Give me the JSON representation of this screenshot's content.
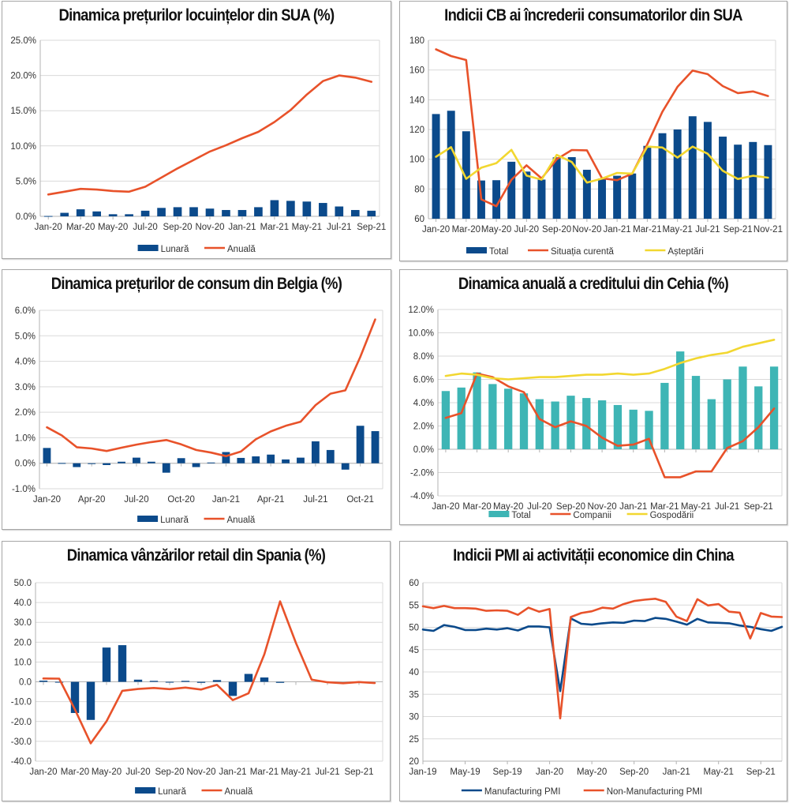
{
  "chart_data": [
    {
      "id": "us-house-prices",
      "type": "bar+line",
      "title": "Dinamica prețurilor locuințelor din SUA (%)",
      "xlabel": "",
      "ylabel": "",
      "categories": [
        "Jan-20",
        "Feb-20",
        "Mar-20",
        "Apr-20",
        "May-20",
        "Jun-20",
        "Jul-20",
        "Aug-20",
        "Sep-20",
        "Oct-20",
        "Nov-20",
        "Dec-20",
        "Jan-21",
        "Feb-21",
        "Mar-21",
        "Apr-21",
        "May-21",
        "Jun-21",
        "Jul-21",
        "Aug-21",
        "Sep-21"
      ],
      "tick_labels": [
        "Jan-20",
        "Mar-20",
        "May-20",
        "Jul-20",
        "Sep-20",
        "Nov-20",
        "Jan-21",
        "Mar-21",
        "May-21",
        "Jul-21",
        "Sep-21"
      ],
      "ylim": [
        0,
        25
      ],
      "ystep": 5,
      "yformat": "pct1",
      "grid": true,
      "legend": "bottom",
      "series": [
        {
          "name": "Lunară",
          "kind": "bar",
          "color": "#0b4a8b",
          "values": [
            0.05,
            0.5,
            1.0,
            0.7,
            0.3,
            0.3,
            0.8,
            1.2,
            1.3,
            1.3,
            1.1,
            0.9,
            0.9,
            1.3,
            2.3,
            2.2,
            2.1,
            1.9,
            1.4,
            0.9,
            0.8
          ]
        },
        {
          "name": "Anuală",
          "kind": "line",
          "color": "#e8522a",
          "values": [
            3.1,
            3.5,
            3.9,
            3.8,
            3.6,
            3.5,
            4.2,
            5.5,
            6.8,
            8.0,
            9.2,
            10.1,
            11.1,
            12.0,
            13.4,
            15.1,
            17.3,
            19.2,
            20.0,
            19.7,
            19.1
          ]
        }
      ]
    },
    {
      "id": "us-consumer-confidence",
      "type": "bar+line",
      "title": "Indicii CB ai încrederii consumatorilor din SUA",
      "xlabel": "",
      "ylabel": "",
      "categories": [
        "Jan-20",
        "Feb-20",
        "Mar-20",
        "Apr-20",
        "May-20",
        "Jun-20",
        "Jul-20",
        "Aug-20",
        "Sep-20",
        "Oct-20",
        "Nov-20",
        "Dec-20",
        "Jan-21",
        "Feb-21",
        "Mar-21",
        "Apr-21",
        "May-21",
        "Jun-21",
        "Jul-21",
        "Aug-21",
        "Sep-21",
        "Oct-21",
        "Nov-21"
      ],
      "tick_labels": [
        "Jan-20",
        "Mar-20",
        "May-20",
        "Jul-20",
        "Sep-20",
        "Nov-20",
        "Jan-21",
        "Mar-21",
        "May-21",
        "Jul-21",
        "Sep-21",
        "Nov-21"
      ],
      "ylim": [
        60,
        180
      ],
      "ystep": 20,
      "yformat": "int",
      "grid": true,
      "legend": "bottom",
      "series": [
        {
          "name": "Total",
          "kind": "bar",
          "color": "#0b4a8b",
          "values": [
            130.4,
            132.6,
            118.8,
            85.7,
            85.9,
            98.3,
            91.7,
            86.3,
            101.3,
            101.4,
            92.9,
            87.1,
            88.9,
            90.4,
            109.0,
            117.5,
            120.0,
            128.9,
            125.1,
            115.2,
            109.8,
            111.6,
            109.5
          ]
        },
        {
          "name": "Situația curentă",
          "kind": "line",
          "color": "#e8522a",
          "values": [
            173.9,
            169.4,
            166.7,
            73.0,
            68.4,
            86.2,
            95.9,
            87.1,
            100.0,
            106.2,
            106.0,
            87.2,
            85.9,
            90.3,
            110.0,
            131.9,
            148.7,
            159.6,
            157.2,
            149.2,
            144.5,
            145.6,
            142.5
          ]
        },
        {
          "name": "Așteptări",
          "kind": "line",
          "color": "#f2d730",
          "values": [
            101.7,
            108.1,
            86.8,
            94.3,
            97.4,
            106.3,
            89.0,
            86.3,
            102.9,
            98.1,
            84.3,
            87.0,
            90.8,
            90.3,
            108.5,
            107.9,
            101.1,
            108.5,
            103.7,
            92.3,
            86.7,
            88.9,
            87.6
          ]
        }
      ]
    },
    {
      "id": "belgium-cpi",
      "type": "bar+line",
      "title": "Dinamica prețurilor de consum din Belgia (%)",
      "xlabel": "",
      "ylabel": "",
      "categories": [
        "Jan-20",
        "Feb-20",
        "Mar-20",
        "Apr-20",
        "May-20",
        "Jun-20",
        "Jul-20",
        "Aug-20",
        "Sep-20",
        "Oct-20",
        "Nov-20",
        "Dec-20",
        "Jan-21",
        "Feb-21",
        "Mar-21",
        "Apr-21",
        "May-21",
        "Jun-21",
        "Jul-21",
        "Aug-21",
        "Sep-21",
        "Oct-21",
        "Nov-21"
      ],
      "tick_labels": [
        "Jan-20",
        "Apr-20",
        "Jul-20",
        "Oct-20",
        "Jan-21",
        "Apr-21",
        "Jul-21",
        "Oct-21"
      ],
      "tick_every": 3,
      "ylim": [
        -1,
        6
      ],
      "ystep": 1,
      "yformat": "pct1",
      "grid": true,
      "legend": "bottom",
      "series": [
        {
          "name": "Lunară",
          "kind": "bar",
          "color": "#0b4a8b",
          "values": [
            0.6,
            0.01,
            -0.15,
            0.0,
            -0.07,
            0.06,
            0.22,
            0.06,
            -0.37,
            0.2,
            -0.15,
            0.03,
            0.44,
            0.21,
            0.27,
            0.34,
            0.15,
            0.22,
            0.86,
            0.52,
            -0.25,
            1.47,
            1.26
          ]
        },
        {
          "name": "Anuală",
          "kind": "line",
          "color": "#e8522a",
          "values": [
            1.41,
            1.09,
            0.63,
            0.58,
            0.48,
            0.61,
            0.73,
            0.83,
            0.91,
            0.74,
            0.52,
            0.42,
            0.28,
            0.46,
            0.94,
            1.25,
            1.47,
            1.63,
            2.28,
            2.73,
            2.86,
            4.17,
            5.64
          ]
        }
      ]
    },
    {
      "id": "czech-credit",
      "type": "bar+line",
      "title": "Dinamica anuală a creditului din Cehia (%)",
      "xlabel": "",
      "ylabel": "",
      "categories": [
        "Jan-20",
        "Feb-20",
        "Mar-20",
        "Apr-20",
        "May-20",
        "Jun-20",
        "Jul-20",
        "Aug-20",
        "Sep-20",
        "Oct-20",
        "Nov-20",
        "Dec-20",
        "Jan-21",
        "Feb-21",
        "Mar-21",
        "Apr-21",
        "May-21",
        "Jun-21",
        "Jul-21",
        "Aug-21",
        "Sep-21",
        "Oct-21"
      ],
      "tick_labels": [
        "Jan-20",
        "Mar-20",
        "May-20",
        "Jul-20",
        "Sep-20",
        "Nov-20",
        "Jan-21",
        "Mar-21",
        "May-21",
        "Jul-21",
        "Sep-21"
      ],
      "ylim": [
        -4,
        12
      ],
      "ystep": 2,
      "yformat": "pct1",
      "grid": true,
      "legend": "bottom",
      "series": [
        {
          "name": "Total",
          "kind": "bar",
          "color": "#3eb5b5",
          "values": [
            5.0,
            5.3,
            6.6,
            5.6,
            5.2,
            4.8,
            4.3,
            4.1,
            4.6,
            4.4,
            4.2,
            3.8,
            3.4,
            3.3,
            5.7,
            8.4,
            6.3,
            4.3,
            6.0,
            7.1,
            5.4,
            7.1
          ]
        },
        {
          "name": "Companii",
          "kind": "line",
          "color": "#e8522a",
          "values": [
            2.7,
            3.1,
            6.5,
            6.2,
            5.4,
            4.9,
            2.6,
            1.9,
            2.4,
            2.0,
            1.0,
            0.3,
            0.4,
            0.9,
            -2.4,
            -2.4,
            -1.9,
            -1.9,
            0.1,
            0.7,
            1.9,
            3.5
          ]
        },
        {
          "name": "Gospodării",
          "kind": "line",
          "color": "#f2d730",
          "values": [
            6.3,
            6.5,
            6.4,
            6.1,
            6.0,
            6.1,
            6.2,
            6.2,
            6.3,
            6.4,
            6.4,
            6.5,
            6.4,
            6.5,
            6.9,
            7.4,
            7.8,
            8.1,
            8.3,
            8.8,
            9.1,
            9.4
          ]
        }
      ]
    },
    {
      "id": "spain-retail",
      "type": "bar+line",
      "title": "Dinamica vânzărilor retail din Spania (%)",
      "xlabel": "",
      "ylabel": "",
      "categories": [
        "Jan-20",
        "Feb-20",
        "Mar-20",
        "Apr-20",
        "May-20",
        "Jun-20",
        "Jul-20",
        "Aug-20",
        "Sep-20",
        "Oct-20",
        "Nov-20",
        "Dec-20",
        "Jan-21",
        "Feb-21",
        "Mar-21",
        "Apr-21",
        "May-21",
        "Jun-21",
        "Jul-21",
        "Aug-21",
        "Sep-21",
        "Oct-21"
      ],
      "tick_labels": [
        "Jan-20",
        "Mar-20",
        "May-20",
        "Jul-20",
        "Sep-20",
        "Nov-20",
        "Jan-21",
        "Mar-21",
        "May-21",
        "Jul-21",
        "Sep-21"
      ],
      "ylim": [
        -40,
        50
      ],
      "ystep": 10,
      "yformat": "fix1",
      "grid": true,
      "legend": "bottom",
      "series": [
        {
          "name": "Lunară",
          "kind": "bar",
          "color": "#0b4a8b",
          "values": [
            0.6,
            0.0,
            -15.7,
            -19.2,
            17.3,
            18.5,
            1.1,
            0.5,
            -0.3,
            0.5,
            -0.5,
            0.9,
            -7.1,
            4.0,
            2.2,
            -0.5,
            null,
            null,
            null,
            null,
            null,
            null
          ]
        },
        {
          "name": "Anuală",
          "kind": "line",
          "color": "#e8522a",
          "values": [
            1.7,
            1.6,
            -14.0,
            -31.0,
            -19.9,
            -4.5,
            -3.6,
            -3.1,
            -3.7,
            -2.9,
            -3.9,
            -1.5,
            -9.2,
            -5.8,
            13.9,
            40.6,
            19.7,
            1.1,
            -0.2,
            -0.7,
            -0.1,
            -0.6
          ]
        }
      ]
    },
    {
      "id": "china-pmi",
      "type": "line",
      "title": "Indicii PMI ai activității economice din China",
      "xlabel": "",
      "ylabel": "",
      "categories": [
        "Jan-19",
        "Feb-19",
        "Mar-19",
        "Apr-19",
        "May-19",
        "Jun-19",
        "Jul-19",
        "Aug-19",
        "Sep-19",
        "Oct-19",
        "Nov-19",
        "Dec-19",
        "Jan-20",
        "Feb-20",
        "Mar-20",
        "Apr-20",
        "May-20",
        "Jun-20",
        "Jul-20",
        "Aug-20",
        "Sep-20",
        "Oct-20",
        "Nov-20",
        "Dec-20",
        "Jan-21",
        "Feb-21",
        "Mar-21",
        "Apr-21",
        "May-21",
        "Jun-21",
        "Jul-21",
        "Aug-21",
        "Sep-21",
        "Oct-21",
        "Nov-21"
      ],
      "tick_labels": [
        "Jan-19",
        "May-19",
        "Sep-19",
        "Jan-20",
        "May-20",
        "Sep-20",
        "Jan-21",
        "May-21",
        "Sep-21"
      ],
      "tick_every": 4,
      "ylim": [
        20,
        60
      ],
      "ystep": 5,
      "yformat": "int",
      "grid": true,
      "legend": "bottom",
      "series": [
        {
          "name": "Manufacturing PMI",
          "kind": "line",
          "color": "#0b4a8b",
          "values": [
            49.5,
            49.2,
            50.5,
            50.1,
            49.4,
            49.4,
            49.7,
            49.5,
            49.8,
            49.3,
            50.2,
            50.2,
            50.0,
            35.7,
            52.0,
            50.8,
            50.6,
            50.9,
            51.1,
            51.0,
            51.5,
            51.4,
            52.1,
            51.9,
            51.3,
            50.6,
            51.9,
            51.1,
            51.0,
            50.9,
            50.4,
            50.1,
            49.6,
            49.2,
            50.1
          ]
        },
        {
          "name": "Non-Manufacturing PMI",
          "kind": "line",
          "color": "#e8522a",
          "values": [
            54.7,
            54.3,
            54.8,
            54.3,
            54.3,
            54.2,
            53.7,
            53.8,
            53.7,
            52.8,
            54.4,
            53.5,
            54.1,
            29.6,
            52.3,
            53.2,
            53.6,
            54.4,
            54.2,
            55.2,
            55.9,
            56.2,
            56.4,
            55.7,
            52.4,
            51.4,
            56.3,
            54.9,
            55.2,
            53.5,
            53.3,
            47.5,
            53.2,
            52.4,
            52.3
          ]
        }
      ]
    }
  ]
}
